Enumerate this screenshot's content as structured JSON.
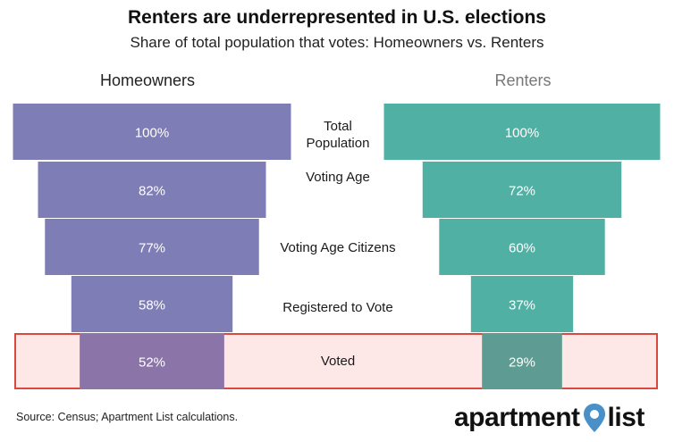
{
  "chart_data": {
    "type": "bar",
    "title": "Renters are underrepresented in U.S. elections",
    "subtitle": "Share of total population that votes: Homeowners vs. Renters",
    "categories": [
      "Total Population",
      "Voting Age",
      "Voting Age Citizens",
      "Registered to Vote",
      "Voted"
    ],
    "series": [
      {
        "name": "Homeowners",
        "values": [
          100,
          82,
          77,
          58,
          52
        ],
        "labels": [
          "100%",
          "82%",
          "77%",
          "58%",
          "52%"
        ]
      },
      {
        "name": "Renters",
        "values": [
          100,
          72,
          60,
          37,
          29
        ],
        "labels": [
          "100%",
          "72%",
          "60%",
          "37%",
          "29%"
        ]
      }
    ],
    "highlighted_category": "Voted",
    "unit": "%"
  },
  "colors": {
    "homeowners": "#7f7db5",
    "homeowners_highlight": "#8a74a8",
    "renters": "#51b0a4",
    "renters_highlight": "#5e9b93",
    "highlight_fill": "#fde7e7",
    "highlight_border": "#d9493f",
    "logo_pin": "#4a90c8"
  },
  "footer": {
    "source": "Source: Census; Apartment List calculations.",
    "logo_left": "apartment",
    "logo_right": "list",
    "logo_icon": "map-pin-icon"
  }
}
